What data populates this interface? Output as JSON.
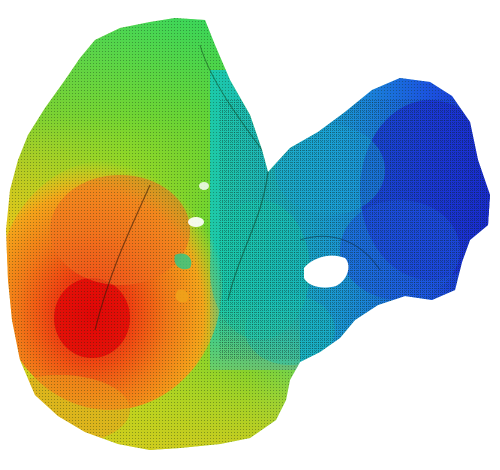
{
  "image": {
    "kind": "3D surface mesh rendering with color map",
    "colors": {
      "background": "#ffffff",
      "hot": "#e01010",
      "warm": "#f07a1a",
      "mid": "#7fd12a",
      "cool": "#16c9b0",
      "cold": "#1a3ad8"
    }
  }
}
